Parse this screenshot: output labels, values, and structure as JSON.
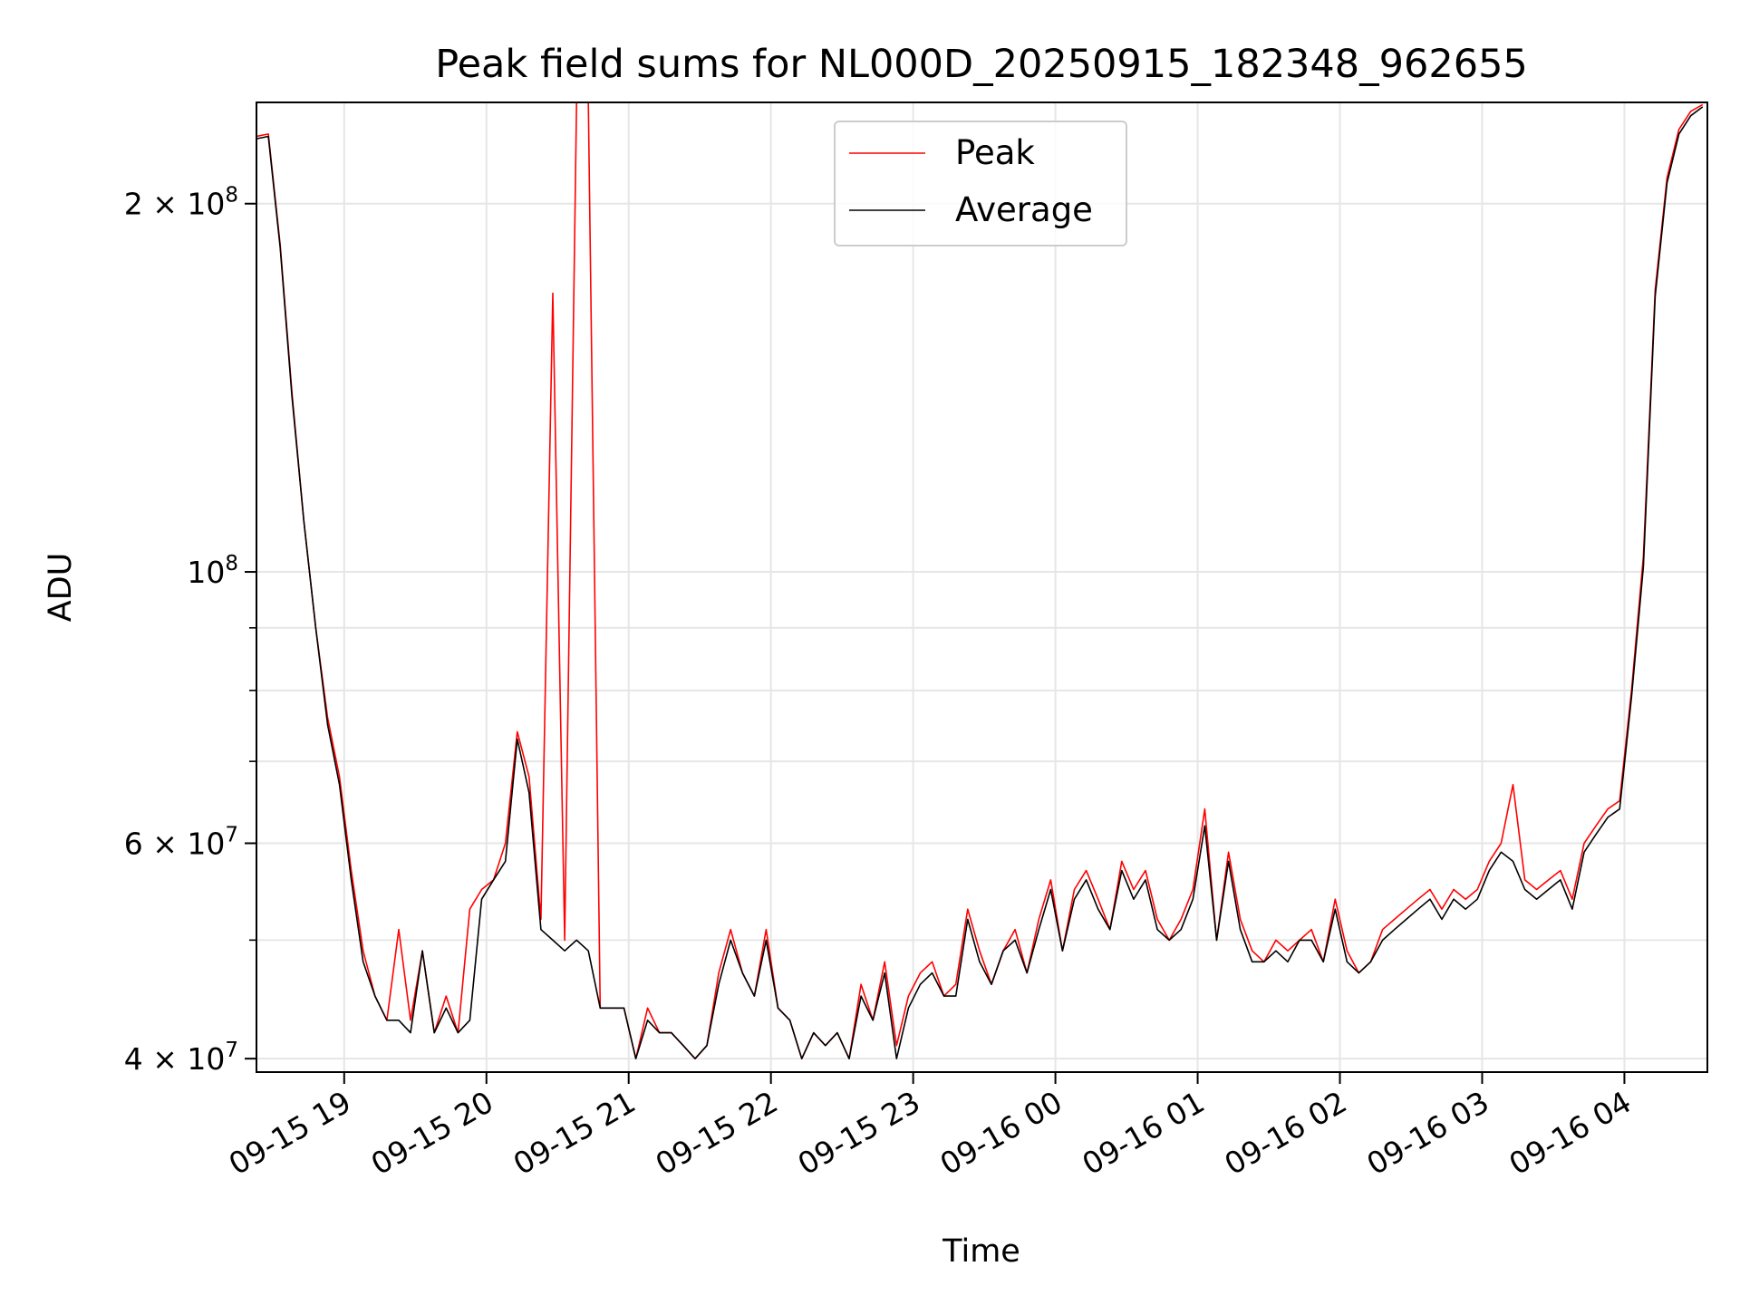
{
  "chart_data": {
    "type": "line",
    "title": "Peak field sums for NL000D_20250915_182348_962655",
    "xlabel": "Time",
    "ylabel": "ADU",
    "yscale": "log",
    "grid": true,
    "legend_placement": "upper center",
    "xlim": [
      "2025-09-15 18:23",
      "2025-09-16 04:35"
    ],
    "ylim": [
      39000000,
      242000000
    ],
    "x_ticks": [
      "09-15 19",
      "09-15 20",
      "09-15 21",
      "09-15 22",
      "09-15 23",
      "09-16 00",
      "09-16 01",
      "09-16 02",
      "09-16 03",
      "09-16 04"
    ],
    "y_ticks": [
      {
        "value": 40000000,
        "label": "4 × 10",
        "exp": "7"
      },
      {
        "value": 60000000,
        "label": "6 × 10",
        "exp": "7"
      },
      {
        "value": 100000000,
        "label": "10",
        "exp": "8"
      },
      {
        "value": 200000000,
        "label": "2 × 10",
        "exp": "8"
      }
    ],
    "series": [
      {
        "name": "Peak",
        "color": "#ff0000",
        "x": [
          "2025-09-15 18:23",
          "2025-09-15 18:28",
          "2025-09-15 18:33",
          "2025-09-15 18:38",
          "2025-09-15 18:43",
          "2025-09-15 18:48",
          "2025-09-15 18:53",
          "2025-09-15 18:58",
          "2025-09-15 19:03",
          "2025-09-15 19:08",
          "2025-09-15 19:13",
          "2025-09-15 19:18",
          "2025-09-15 19:23",
          "2025-09-15 19:28",
          "2025-09-15 19:33",
          "2025-09-15 19:38",
          "2025-09-15 19:43",
          "2025-09-15 19:48",
          "2025-09-15 19:53",
          "2025-09-15 19:58",
          "2025-09-15 20:03",
          "2025-09-15 20:08",
          "2025-09-15 20:13",
          "2025-09-15 20:18",
          "2025-09-15 20:23",
          "2025-09-15 20:28",
          "2025-09-15 20:33",
          "2025-09-15 20:38",
          "2025-09-15 20:43",
          "2025-09-15 20:48",
          "2025-09-15 20:53",
          "2025-09-15 20:58",
          "2025-09-15 21:03",
          "2025-09-15 21:08",
          "2025-09-15 21:13",
          "2025-09-15 21:18",
          "2025-09-15 21:23",
          "2025-09-15 21:28",
          "2025-09-15 21:33",
          "2025-09-15 21:38",
          "2025-09-15 21:43",
          "2025-09-15 21:48",
          "2025-09-15 21:53",
          "2025-09-15 21:58",
          "2025-09-15 22:03",
          "2025-09-15 22:08",
          "2025-09-15 22:13",
          "2025-09-15 22:18",
          "2025-09-15 22:23",
          "2025-09-15 22:28",
          "2025-09-15 22:33",
          "2025-09-15 22:38",
          "2025-09-15 22:43",
          "2025-09-15 22:48",
          "2025-09-15 22:53",
          "2025-09-15 22:58",
          "2025-09-15 23:03",
          "2025-09-15 23:08",
          "2025-09-15 23:13",
          "2025-09-15 23:18",
          "2025-09-15 23:23",
          "2025-09-15 23:28",
          "2025-09-15 23:33",
          "2025-09-15 23:38",
          "2025-09-15 23:43",
          "2025-09-15 23:48",
          "2025-09-15 23:53",
          "2025-09-15 23:58",
          "2025-09-16 00:03",
          "2025-09-16 00:08",
          "2025-09-16 00:13",
          "2025-09-16 00:18",
          "2025-09-16 00:23",
          "2025-09-16 00:28",
          "2025-09-16 00:33",
          "2025-09-16 00:38",
          "2025-09-16 00:43",
          "2025-09-16 00:48",
          "2025-09-16 00:53",
          "2025-09-16 00:58",
          "2025-09-16 01:03",
          "2025-09-16 01:08",
          "2025-09-16 01:13",
          "2025-09-16 01:18",
          "2025-09-16 01:23",
          "2025-09-16 01:28",
          "2025-09-16 01:33",
          "2025-09-16 01:38",
          "2025-09-16 01:43",
          "2025-09-16 01:48",
          "2025-09-16 01:53",
          "2025-09-16 01:58",
          "2025-09-16 02:03",
          "2025-09-16 02:08",
          "2025-09-16 02:13",
          "2025-09-16 02:18",
          "2025-09-16 02:23",
          "2025-09-16 02:28",
          "2025-09-16 02:33",
          "2025-09-16 02:38",
          "2025-09-16 02:43",
          "2025-09-16 02:48",
          "2025-09-16 02:53",
          "2025-09-16 02:58",
          "2025-09-16 03:03",
          "2025-09-16 03:08",
          "2025-09-16 03:13",
          "2025-09-16 03:18",
          "2025-09-16 03:23",
          "2025-09-16 03:28",
          "2025-09-16 03:33",
          "2025-09-16 03:38",
          "2025-09-16 03:43",
          "2025-09-16 03:48",
          "2025-09-16 03:53",
          "2025-09-16 03:58",
          "2025-09-16 04:03",
          "2025-09-16 04:08",
          "2025-09-16 04:13",
          "2025-09-16 04:18",
          "2025-09-16 04:23",
          "2025-09-16 04:28",
          "2025-09-16 04:33"
        ],
        "values": [
          227000000,
          228000000,
          185000000,
          140000000,
          110000000,
          90000000,
          76000000,
          68000000,
          57000000,
          49000000,
          45000000,
          43000000,
          51000000,
          43000000,
          49000000,
          42000000,
          45000000,
          42000000,
          53000000,
          55000000,
          56000000,
          60000000,
          74000000,
          68000000,
          52000000,
          169000000,
          50000000,
          242000000,
          242000000,
          44000000,
          44000000,
          44000000,
          40000000,
          44000000,
          42000000,
          42000000,
          41000000,
          40000000,
          41000000,
          47000000,
          51000000,
          47000000,
          45000000,
          51000000,
          44000000,
          43000000,
          40000000,
          42000000,
          41000000,
          42000000,
          40000000,
          46000000,
          43000000,
          48000000,
          41000000,
          45000000,
          47000000,
          48000000,
          45000000,
          46000000,
          53000000,
          49000000,
          46000000,
          49000000,
          51000000,
          47000000,
          52000000,
          56000000,
          49000000,
          55000000,
          57000000,
          54000000,
          51000000,
          58000000,
          55000000,
          57000000,
          52000000,
          50000000,
          52000000,
          55000000,
          64000000,
          50000000,
          59000000,
          52000000,
          49000000,
          48000000,
          50000000,
          49000000,
          50000000,
          51000000,
          48000000,
          54000000,
          49000000,
          47000000,
          48000000,
          51000000,
          52000000,
          53000000,
          54000000,
          55000000,
          53000000,
          55000000,
          54000000,
          55000000,
          58000000,
          60000000,
          67000000,
          56000000,
          55000000,
          56000000,
          57000000,
          54000000,
          60000000,
          62000000,
          64000000,
          65000000,
          80000000,
          103000000,
          170000000,
          210000000,
          230000000,
          238000000,
          241000000
        ]
      },
      {
        "name": "Average",
        "color": "#000000",
        "x": [
          "2025-09-15 18:23",
          "2025-09-15 18:28",
          "2025-09-15 18:33",
          "2025-09-15 18:38",
          "2025-09-15 18:43",
          "2025-09-15 18:48",
          "2025-09-15 18:53",
          "2025-09-15 18:58",
          "2025-09-15 19:03",
          "2025-09-15 19:08",
          "2025-09-15 19:13",
          "2025-09-15 19:18",
          "2025-09-15 19:23",
          "2025-09-15 19:28",
          "2025-09-15 19:33",
          "2025-09-15 19:38",
          "2025-09-15 19:43",
          "2025-09-15 19:48",
          "2025-09-15 19:53",
          "2025-09-15 19:58",
          "2025-09-15 20:03",
          "2025-09-15 20:08",
          "2025-09-15 20:13",
          "2025-09-15 20:18",
          "2025-09-15 20:23",
          "2025-09-15 20:28",
          "2025-09-15 20:33",
          "2025-09-15 20:38",
          "2025-09-15 20:43",
          "2025-09-15 20:48",
          "2025-09-15 20:53",
          "2025-09-15 20:58",
          "2025-09-15 21:03",
          "2025-09-15 21:08",
          "2025-09-15 21:13",
          "2025-09-15 21:18",
          "2025-09-15 21:23",
          "2025-09-15 21:28",
          "2025-09-15 21:33",
          "2025-09-15 21:38",
          "2025-09-15 21:43",
          "2025-09-15 21:48",
          "2025-09-15 21:53",
          "2025-09-15 21:58",
          "2025-09-15 22:03",
          "2025-09-15 22:08",
          "2025-09-15 22:13",
          "2025-09-15 22:18",
          "2025-09-15 22:23",
          "2025-09-15 22:28",
          "2025-09-15 22:33",
          "2025-09-15 22:38",
          "2025-09-15 22:43",
          "2025-09-15 22:48",
          "2025-09-15 22:53",
          "2025-09-15 22:58",
          "2025-09-15 23:03",
          "2025-09-15 23:08",
          "2025-09-15 23:13",
          "2025-09-15 23:18",
          "2025-09-15 23:23",
          "2025-09-15 23:28",
          "2025-09-15 23:33",
          "2025-09-15 23:38",
          "2025-09-15 23:43",
          "2025-09-15 23:48",
          "2025-09-15 23:53",
          "2025-09-15 23:58",
          "2025-09-16 00:03",
          "2025-09-16 00:08",
          "2025-09-16 00:13",
          "2025-09-16 00:18",
          "2025-09-16 00:23",
          "2025-09-16 00:28",
          "2025-09-16 00:33",
          "2025-09-16 00:38",
          "2025-09-16 00:43",
          "2025-09-16 00:48",
          "2025-09-16 00:53",
          "2025-09-16 00:58",
          "2025-09-16 01:03",
          "2025-09-16 01:08",
          "2025-09-16 01:13",
          "2025-09-16 01:18",
          "2025-09-16 01:23",
          "2025-09-16 01:28",
          "2025-09-16 01:33",
          "2025-09-16 01:38",
          "2025-09-16 01:43",
          "2025-09-16 01:48",
          "2025-09-16 01:53",
          "2025-09-16 01:58",
          "2025-09-16 02:03",
          "2025-09-16 02:08",
          "2025-09-16 02:13",
          "2025-09-16 02:18",
          "2025-09-16 02:23",
          "2025-09-16 02:28",
          "2025-09-16 02:33",
          "2025-09-16 02:38",
          "2025-09-16 02:43",
          "2025-09-16 02:48",
          "2025-09-16 02:53",
          "2025-09-16 02:58",
          "2025-09-16 03:03",
          "2025-09-16 03:08",
          "2025-09-16 03:13",
          "2025-09-16 03:18",
          "2025-09-16 03:23",
          "2025-09-16 03:28",
          "2025-09-16 03:33",
          "2025-09-16 03:38",
          "2025-09-16 03:43",
          "2025-09-16 03:48",
          "2025-09-16 03:53",
          "2025-09-16 03:58",
          "2025-09-16 04:03",
          "2025-09-16 04:08",
          "2025-09-16 04:13",
          "2025-09-16 04:18",
          "2025-09-16 04:23",
          "2025-09-16 04:28",
          "2025-09-16 04:33"
        ],
        "values": [
          226000000,
          227000000,
          184000000,
          139000000,
          110000000,
          90000000,
          75000000,
          67000000,
          56000000,
          48000000,
          45000000,
          43000000,
          43000000,
          42000000,
          49000000,
          42000000,
          44000000,
          42000000,
          43000000,
          54000000,
          56000000,
          58000000,
          73000000,
          66000000,
          51000000,
          50000000,
          49000000,
          50000000,
          49000000,
          44000000,
          44000000,
          44000000,
          40000000,
          43000000,
          42000000,
          42000000,
          41000000,
          40000000,
          41000000,
          46000000,
          50000000,
          47000000,
          45000000,
          50000000,
          44000000,
          43000000,
          40000000,
          42000000,
          41000000,
          42000000,
          40000000,
          45000000,
          43000000,
          47000000,
          40000000,
          44000000,
          46000000,
          47000000,
          45000000,
          45000000,
          52000000,
          48000000,
          46000000,
          49000000,
          50000000,
          47000000,
          51000000,
          55000000,
          49000000,
          54000000,
          56000000,
          53000000,
          51000000,
          57000000,
          54000000,
          56000000,
          51000000,
          50000000,
          51000000,
          54000000,
          62000000,
          50000000,
          58000000,
          51000000,
          48000000,
          48000000,
          49000000,
          48000000,
          50000000,
          50000000,
          48000000,
          53000000,
          48000000,
          47000000,
          48000000,
          50000000,
          51000000,
          52000000,
          53000000,
          54000000,
          52000000,
          54000000,
          53000000,
          54000000,
          57000000,
          59000000,
          58000000,
          55000000,
          54000000,
          55000000,
          56000000,
          53000000,
          59000000,
          61000000,
          63000000,
          64000000,
          79000000,
          101000000,
          168000000,
          208000000,
          228000000,
          236000000,
          240000000
        ]
      }
    ]
  }
}
